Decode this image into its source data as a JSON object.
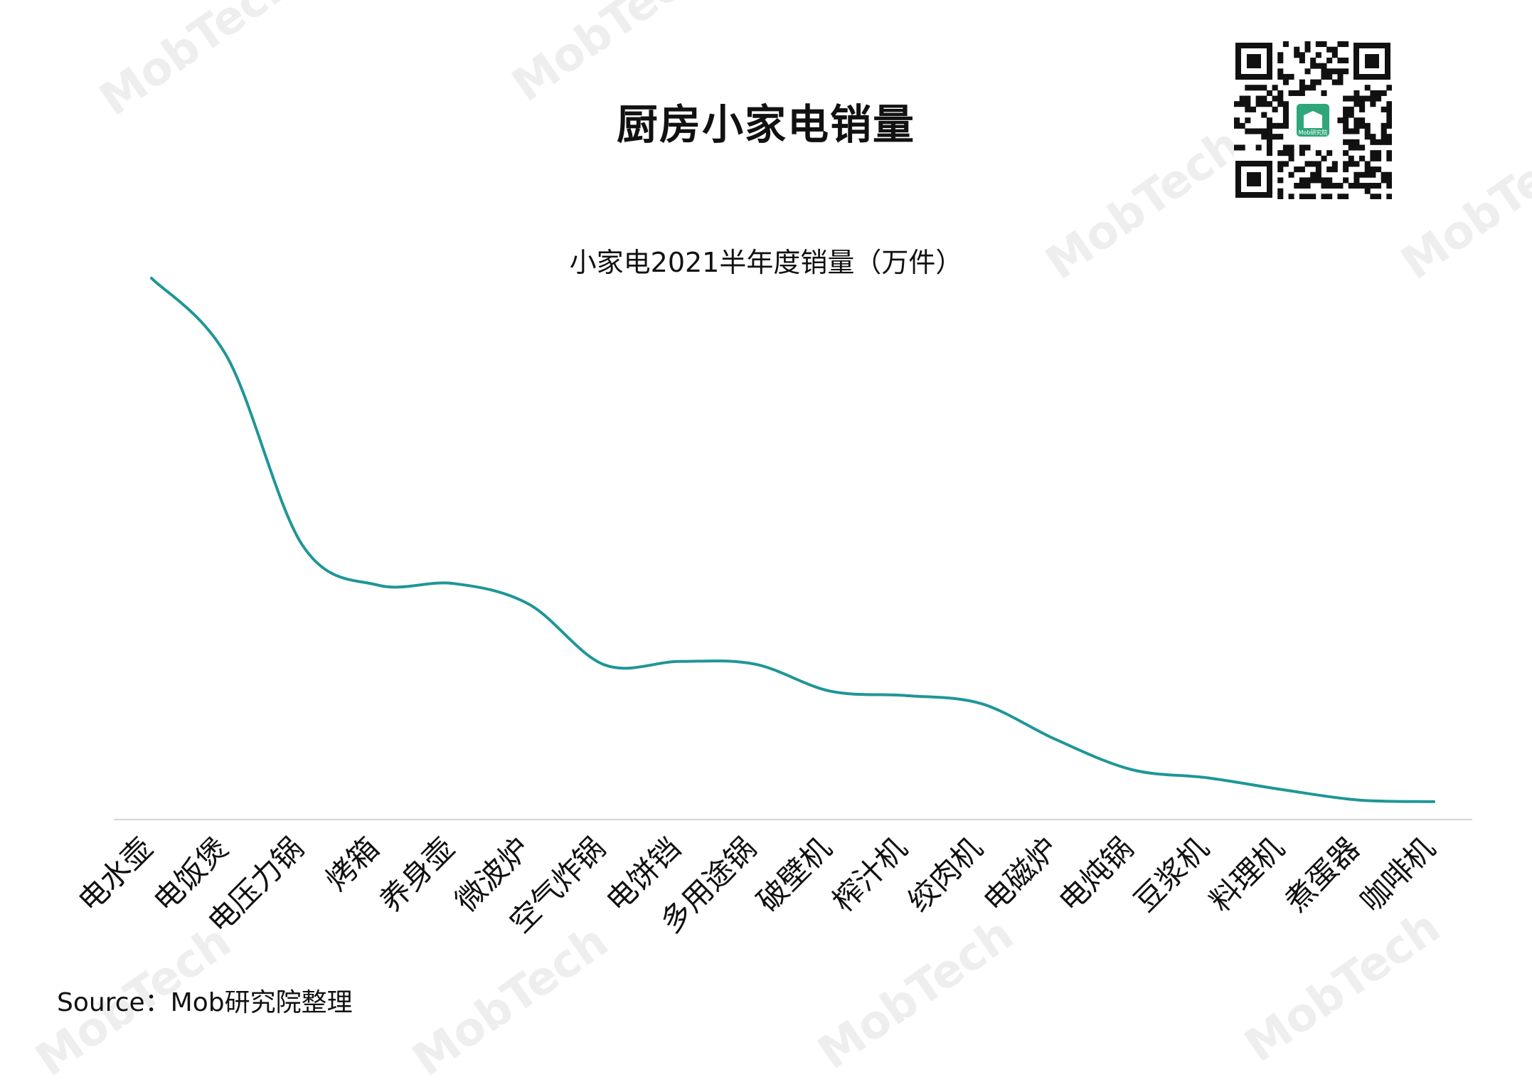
{
  "page": {
    "title": "厨房小家电销量",
    "source": "Source：Mob研究院整理",
    "watermark": "MobTech"
  },
  "colors": {
    "line": "#1f9698",
    "axis": "#d4d4d4",
    "text": "#111111"
  },
  "qr_logo": "Mob研究院",
  "chart_data": {
    "type": "line",
    "title": "小家电2021半年度销量（万件）",
    "xlabel": "",
    "ylabel": "",
    "categories": [
      "电水壶",
      "电饭煲",
      "电压力锅",
      "烤箱",
      "养身壶",
      "微波炉",
      "空气炸锅",
      "电饼铛",
      "多用途锅",
      "破壁机",
      "榨汁机",
      "绞肉机",
      "电磁炉",
      "电炖锅",
      "豆浆机",
      "料理机",
      "煮蛋器",
      "咖啡机"
    ],
    "series": [
      {
        "values": [
          1000,
          855,
          507,
          433,
          436,
          398,
          286,
          292,
          287,
          237,
          229,
          214,
          147,
          92,
          77,
          55,
          36,
          33
        ]
      }
    ],
    "ylim": [
      0,
      1100
    ],
    "grid": false,
    "legend": "none"
  }
}
